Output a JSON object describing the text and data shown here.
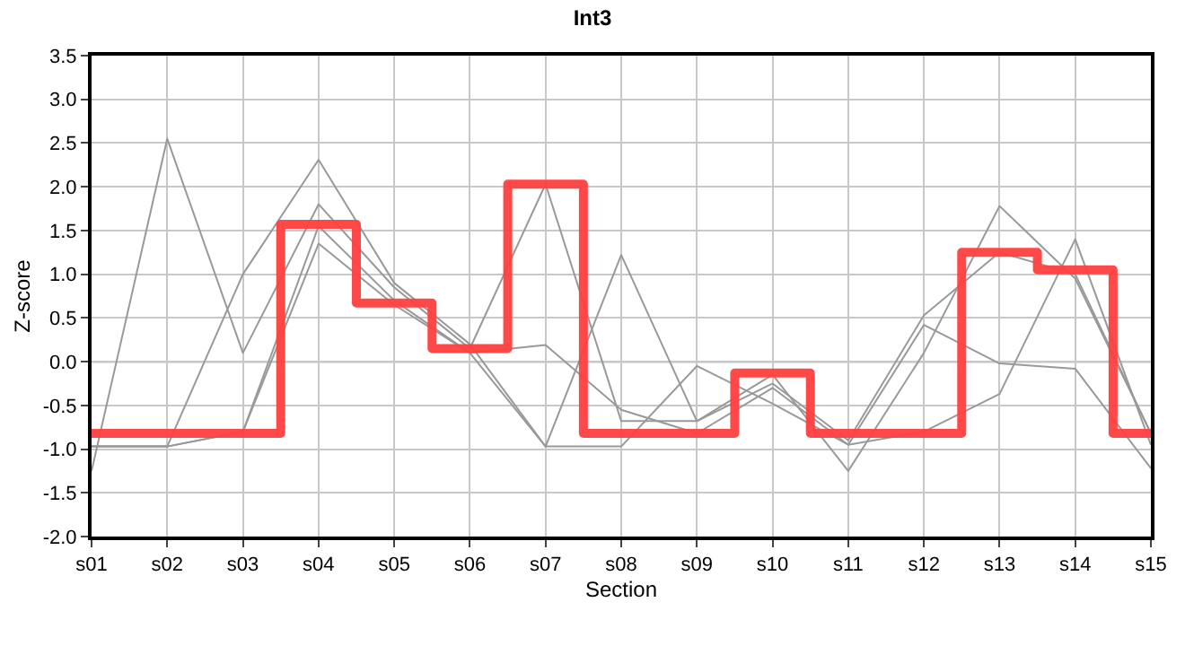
{
  "chart_data": {
    "type": "line",
    "title": "Int3",
    "xlabel": "Section",
    "ylabel": "Z-score",
    "categories": [
      "s01",
      "s02",
      "s03",
      "s04",
      "s05",
      "s06",
      "s07",
      "s08",
      "s09",
      "s10",
      "s11",
      "s12",
      "s13",
      "s14",
      "s15"
    ],
    "series": [
      {
        "color": "#999999",
        "values": [
          -1.25,
          2.55,
          0.1,
          1.8,
          0.85,
          0.15,
          2.03,
          -0.68,
          -0.68,
          -0.25,
          -0.9,
          0.53,
          1.25,
          1.0,
          -0.82
        ]
      },
      {
        "color": "#999999",
        "values": [
          -0.97,
          -0.97,
          1.0,
          2.31,
          0.9,
          0.2,
          -0.97,
          1.22,
          -0.68,
          -0.15,
          -1.25,
          0.1,
          1.78,
          0.95,
          -0.82
        ]
      },
      {
        "color": "#999999",
        "values": [
          -0.97,
          -0.97,
          -0.8,
          1.55,
          0.7,
          0.1,
          0.19,
          -0.55,
          -0.82,
          -0.3,
          -0.95,
          0.42,
          -0.02,
          -0.08,
          -1.22
        ]
      },
      {
        "color": "#999999",
        "values": [
          -0.97,
          -0.97,
          -0.8,
          1.35,
          0.65,
          0.1,
          -0.97,
          -0.97,
          -0.05,
          -0.48,
          -0.95,
          -0.8,
          -0.37,
          1.4,
          -0.95
        ]
      },
      {
        "type": "step",
        "color": "#ff4040",
        "values": [
          -0.82,
          -0.82,
          -0.82,
          1.57,
          0.67,
          0.15,
          2.03,
          -0.82,
          -0.82,
          -0.13,
          -0.82,
          -0.82,
          1.25,
          1.05,
          -0.82
        ]
      }
    ],
    "ylim": [
      -2.0,
      3.5
    ],
    "yticks": [
      {
        "value": -2,
        "label": "-2.0"
      },
      {
        "value": -1.5,
        "label": "-1.5"
      },
      {
        "value": -1,
        "label": "-1.0"
      },
      {
        "value": -0.5,
        "label": "-0.5"
      },
      {
        "value": 0,
        "label": "0.0"
      },
      {
        "value": 0.5,
        "label": "0.5"
      },
      {
        "value": 1,
        "label": "1.0"
      },
      {
        "value": 1.5,
        "label": "1.5"
      },
      {
        "value": 2,
        "label": "2.0"
      },
      {
        "value": 2.5,
        "label": "2.5"
      },
      {
        "value": 3,
        "label": "3.0"
      },
      {
        "value": 3.5,
        "label": "3.5"
      }
    ],
    "ref_lines": [
      {
        "axis": "y",
        "value": 0,
        "color": "#808080"
      }
    ],
    "grid": true,
    "marker": "none"
  }
}
